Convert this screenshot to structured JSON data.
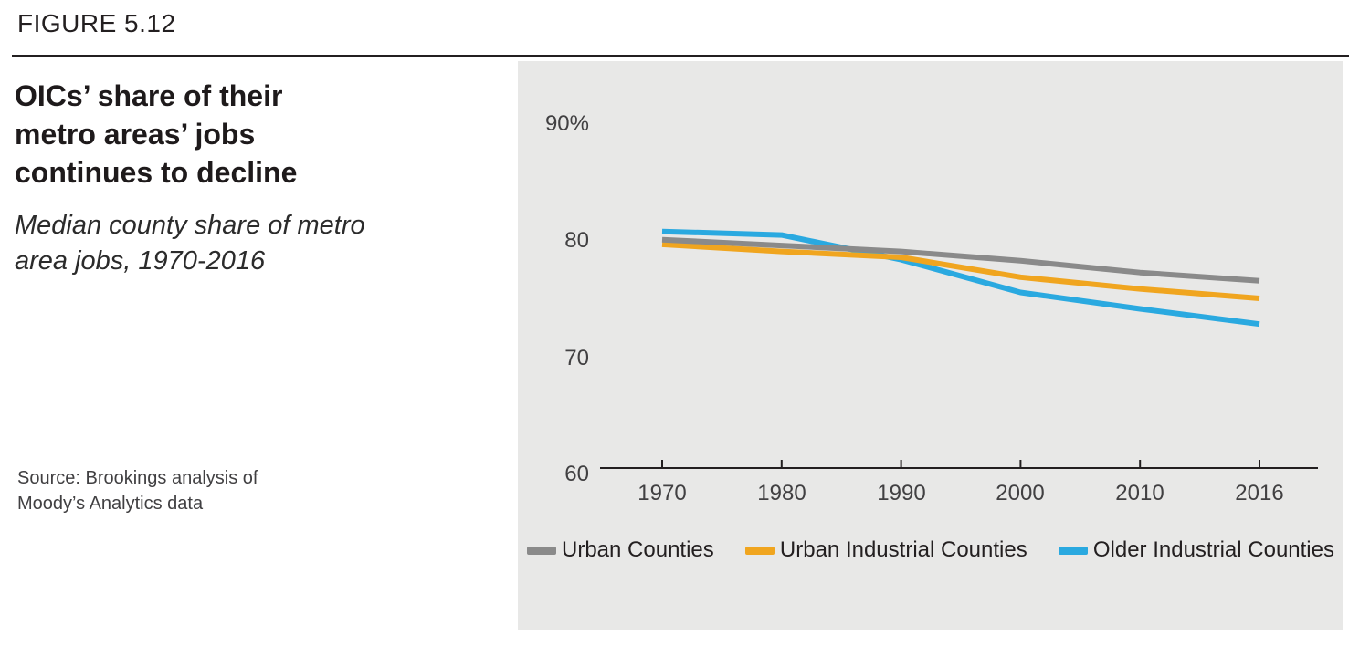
{
  "header": {
    "figure_label": "FIGURE 5.12"
  },
  "left_column": {
    "title_lines": [
      "OICs’ share of their",
      "metro areas’ jobs",
      "continues to decline"
    ],
    "subtitle_lines": [
      "Median county share of metro",
      "area jobs, 1970-2016"
    ],
    "source_lines": [
      "Source: Brookings analysis of",
      "Moody’s Analytics data"
    ]
  },
  "colors": {
    "text_dark": "#231F20",
    "axis_text": "#414042",
    "plot_background": "#E8E8E7",
    "urban_counties": "#8A8A8A",
    "urban_industrial_counties": "#F0A51F",
    "older_industrial_counties": "#2AA9E0"
  },
  "chart_data": {
    "type": "line",
    "title": "OICs’ share of their metro areas’ jobs continues to decline",
    "subtitle": "Median county share of metro area jobs, 1970-2016",
    "x": [
      1970,
      1980,
      1990,
      2000,
      2010,
      2016
    ],
    "x_tick_labels": [
      "1970",
      "1980",
      "1990",
      "2000",
      "2010",
      "2016"
    ],
    "x_equal_spacing": true,
    "y_ticks": [
      60,
      70,
      80,
      90
    ],
    "y_tick_labels_top_to_bottom": [
      "90%",
      "80",
      "70",
      "60"
    ],
    "ylim": [
      60,
      90
    ],
    "grid": false,
    "legend_position": "bottom",
    "plot_background": "#E8E8E7",
    "series": [
      {
        "name": "Urban Counties",
        "color": "#8A8A8A",
        "values": [
          80.1,
          79.6,
          79.1,
          78.3,
          77.3,
          76.6
        ]
      },
      {
        "name": "Urban Industrial Counties",
        "color": "#F0A51F",
        "values": [
          79.7,
          79.1,
          78.6,
          76.9,
          75.9,
          75.1
        ]
      },
      {
        "name": "Older Industrial Counties",
        "color": "#2AA9E0",
        "values": [
          80.8,
          80.5,
          78.4,
          75.6,
          74.2,
          72.9
        ]
      }
    ]
  }
}
